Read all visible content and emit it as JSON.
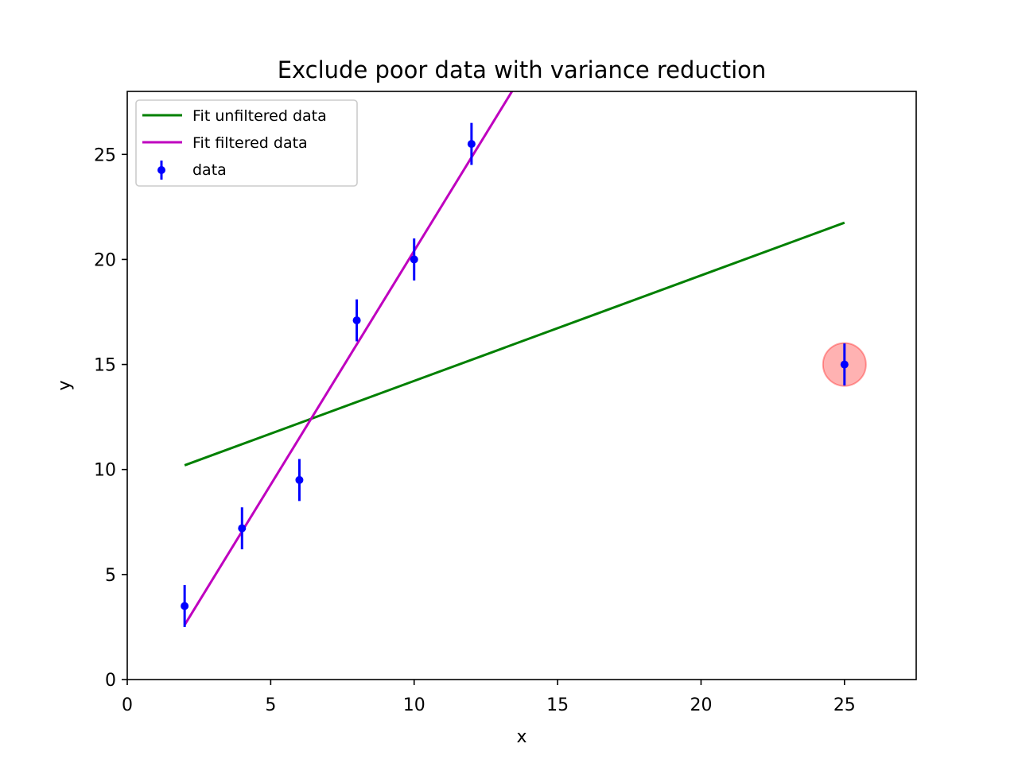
{
  "chart_data": {
    "type": "scatter",
    "title": "Exclude poor data with variance reduction",
    "xlabel": "x",
    "ylabel": "y",
    "xlim": [
      0,
      27.5
    ],
    "ylim": [
      0,
      28
    ],
    "xticks": [
      0,
      5,
      10,
      15,
      20,
      25
    ],
    "yticks": [
      0,
      5,
      10,
      15,
      20,
      25
    ],
    "grid": false,
    "legend_position": "top-left",
    "series": [
      {
        "name": "data",
        "kind": "errorbar",
        "color": "#0000ff",
        "x": [
          2,
          4,
          6,
          8,
          10,
          12,
          25
        ],
        "y": [
          3.5,
          7.2,
          9.5,
          17.1,
          20.0,
          25.5,
          15.0
        ],
        "yerr": 1.0
      },
      {
        "name": "Fit unfiltered data",
        "kind": "line",
        "color": "#008000",
        "x": [
          2,
          25
        ],
        "y": [
          10.2,
          21.75
        ]
      },
      {
        "name": "Fit filtered data",
        "kind": "line",
        "color": "#bf00bf",
        "x": [
          2,
          13.5
        ],
        "y": [
          2.6,
          28.2
        ]
      }
    ],
    "highlight": {
      "x": 25,
      "y": 15.0,
      "color": "#ff0000",
      "opacity": 0.3
    }
  }
}
